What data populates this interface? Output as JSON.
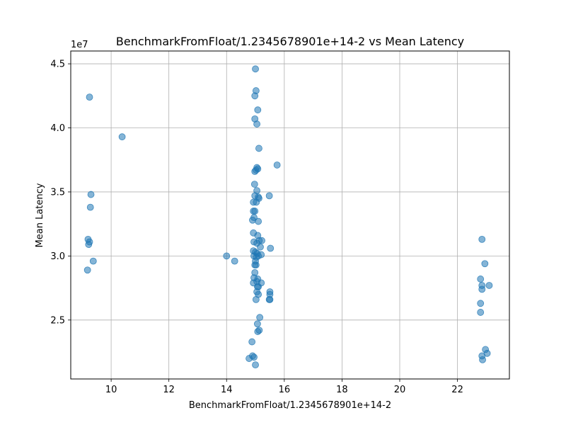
{
  "chart_data": {
    "type": "scatter",
    "title": "BenchmarkFromFloat/1.2345678901e+14-2 vs Mean Latency",
    "xlabel": "BenchmarkFromFloat/1.2345678901e+14-2",
    "ylabel": "Mean Latency",
    "y_offset_label": "1e7",
    "xlim": [
      8.6,
      23.8
    ],
    "ylim": [
      2.04,
      4.6
    ],
    "xticks": [
      10,
      12,
      14,
      16,
      18,
      20,
      22
    ],
    "xtick_labels": [
      "10",
      "12",
      "14",
      "16",
      "18",
      "20",
      "22"
    ],
    "yticks": [
      2.5,
      3.0,
      3.5,
      4.0,
      4.5
    ],
    "ytick_labels": [
      "2.5",
      "3.0",
      "3.5",
      "4.0",
      "4.5"
    ],
    "grid": true,
    "point_color": "#1f77b4",
    "point_alpha": 0.55,
    "series": [
      {
        "name": "Mean Latency",
        "points": [
          [
            9.25,
            4.24
          ],
          [
            9.3,
            3.48
          ],
          [
            9.28,
            3.38
          ],
          [
            9.2,
            3.13
          ],
          [
            9.25,
            3.11
          ],
          [
            9.22,
            3.09
          ],
          [
            9.38,
            2.96
          ],
          [
            9.18,
            2.89
          ],
          [
            10.38,
            3.93
          ],
          [
            14.0,
            3.0
          ],
          [
            14.28,
            2.96
          ],
          [
            14.78,
            2.2
          ],
          [
            14.88,
            2.33
          ],
          [
            14.9,
            2.22
          ],
          [
            14.95,
            2.21
          ],
          [
            15.0,
            2.15
          ],
          [
            15.0,
            4.46
          ],
          [
            15.02,
            4.29
          ],
          [
            14.98,
            4.25
          ],
          [
            15.08,
            4.14
          ],
          [
            14.98,
            4.07
          ],
          [
            15.05,
            4.03
          ],
          [
            15.12,
            3.84
          ],
          [
            15.05,
            3.69
          ],
          [
            15.02,
            3.67
          ],
          [
            14.98,
            3.66
          ],
          [
            15.08,
            3.68
          ],
          [
            15.75,
            3.71
          ],
          [
            14.97,
            3.56
          ],
          [
            15.05,
            3.51
          ],
          [
            14.98,
            3.47
          ],
          [
            15.1,
            3.46
          ],
          [
            15.12,
            3.45
          ],
          [
            15.48,
            3.47
          ],
          [
            14.93,
            3.42
          ],
          [
            15.03,
            3.42
          ],
          [
            14.93,
            3.35
          ],
          [
            14.98,
            3.35
          ],
          [
            14.95,
            3.3
          ],
          [
            14.9,
            3.28
          ],
          [
            15.1,
            3.27
          ],
          [
            14.93,
            3.18
          ],
          [
            15.08,
            3.16
          ],
          [
            14.95,
            3.11
          ],
          [
            15.05,
            3.1
          ],
          [
            15.13,
            3.12
          ],
          [
            15.22,
            3.12
          ],
          [
            15.17,
            3.07
          ],
          [
            15.52,
            3.06
          ],
          [
            14.93,
            3.04
          ],
          [
            15.0,
            3.03
          ],
          [
            15.06,
            3.02
          ],
          [
            15.2,
            3.01
          ],
          [
            14.95,
            3.0
          ],
          [
            15.03,
            2.99
          ],
          [
            15.1,
            3.0
          ],
          [
            15.0,
            2.96
          ],
          [
            15.02,
            2.93
          ],
          [
            14.98,
            2.93
          ],
          [
            14.98,
            2.87
          ],
          [
            14.95,
            2.83
          ],
          [
            15.08,
            2.82
          ],
          [
            15.05,
            2.8
          ],
          [
            14.93,
            2.79
          ],
          [
            15.2,
            2.79
          ],
          [
            15.07,
            2.76
          ],
          [
            15.1,
            2.76
          ],
          [
            15.05,
            2.72
          ],
          [
            15.1,
            2.7
          ],
          [
            15.5,
            2.72
          ],
          [
            15.5,
            2.7
          ],
          [
            15.02,
            2.66
          ],
          [
            15.5,
            2.66
          ],
          [
            15.48,
            2.66
          ],
          [
            15.15,
            2.52
          ],
          [
            15.07,
            2.47
          ],
          [
            15.13,
            2.42
          ],
          [
            15.08,
            2.41
          ],
          [
            22.85,
            3.13
          ],
          [
            22.95,
            2.94
          ],
          [
            22.8,
            2.82
          ],
          [
            22.85,
            2.77
          ],
          [
            22.85,
            2.74
          ],
          [
            23.1,
            2.77
          ],
          [
            22.8,
            2.63
          ],
          [
            22.8,
            2.56
          ],
          [
            22.97,
            2.27
          ],
          [
            23.03,
            2.24
          ],
          [
            22.85,
            2.22
          ],
          [
            22.87,
            2.19
          ]
        ]
      }
    ]
  }
}
